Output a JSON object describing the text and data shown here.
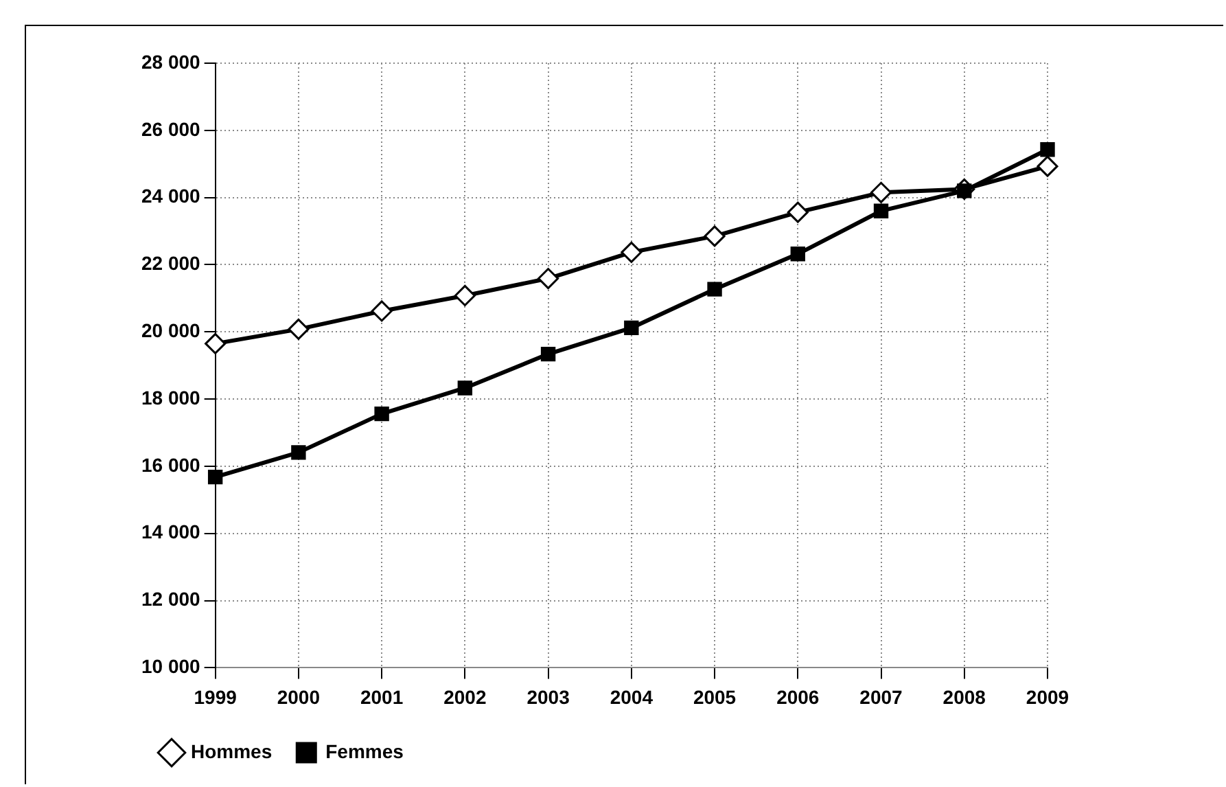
{
  "chart_data": {
    "type": "line",
    "categories": [
      "1999",
      "2000",
      "2001",
      "2002",
      "2003",
      "2004",
      "2005",
      "2006",
      "2007",
      "2008",
      "2009"
    ],
    "series": [
      {
        "name": "Hommes",
        "color": "#000000",
        "marker": "diamond",
        "values": [
          19650,
          20080,
          20620,
          21080,
          21590,
          22370,
          22850,
          23560,
          24150,
          24250,
          24930
        ]
      },
      {
        "name": "Femmes",
        "color": "#000000",
        "marker": "square",
        "values": [
          15680,
          16410,
          17560,
          18330,
          19340,
          20120,
          21270,
          22320,
          23600,
          24200,
          25430
        ]
      }
    ],
    "ylim": [
      10000,
      28000
    ],
    "yticks": [
      {
        "value": 10000,
        "label": "10 000"
      },
      {
        "value": 12000,
        "label": "12 000"
      },
      {
        "value": 14000,
        "label": "14 000"
      },
      {
        "value": 16000,
        "label": "16 000"
      },
      {
        "value": 18000,
        "label": "18 000"
      },
      {
        "value": 20000,
        "label": "20 000"
      },
      {
        "value": 22000,
        "label": "22 000"
      },
      {
        "value": 24000,
        "label": "24 000"
      },
      {
        "value": 26000,
        "label": "26 000"
      },
      {
        "value": 28000,
        "label": "28 000"
      }
    ],
    "grid": true,
    "legend": "bottom left",
    "line_style": "solid"
  }
}
